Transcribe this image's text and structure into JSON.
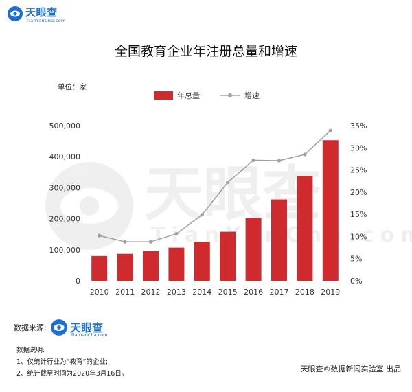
{
  "brand": {
    "name": "天眼查",
    "sub": "TianYanCha.com",
    "color": "#1d6fd1"
  },
  "chart_data": {
    "type": "bar",
    "title": "全国教育企业年注册总量和增速",
    "unit_label": "单位：家",
    "categories": [
      "2010",
      "2011",
      "2012",
      "2013",
      "2014",
      "2015",
      "2016",
      "2017",
      "2018",
      "2019"
    ],
    "series": [
      {
        "name": "年总量",
        "type": "bar",
        "axis": "left",
        "color": "#cf2b2f",
        "values": [
          80000,
          87000,
          96000,
          107000,
          125000,
          158000,
          203000,
          262000,
          338000,
          453000
        ]
      },
      {
        "name": "增速",
        "type": "line",
        "axis": "right",
        "color": "#a0a0a0",
        "values": [
          0.102,
          0.088,
          0.088,
          0.106,
          0.149,
          0.222,
          0.272,
          0.271,
          0.285,
          0.339
        ]
      }
    ],
    "left_axis": {
      "ylim": [
        0,
        500000
      ],
      "ticks": [
        "0",
        "100,000",
        "200,000",
        "300,000",
        "400,000",
        "500,000"
      ]
    },
    "right_axis": {
      "ylim": [
        0,
        0.35
      ],
      "ticks": [
        "0%",
        "5%",
        "10%",
        "15%",
        "20%",
        "25%",
        "30%",
        "35%"
      ]
    },
    "legend_position": "top",
    "grid": false
  },
  "footer": {
    "source_label": "数据来源:",
    "notes_title": "数据说明:",
    "notes": [
      "1、仅统计行业为“教育”的企业;",
      "2、统计截至时间为2020年3月16日。"
    ],
    "credit": "天眼查®数据新闻实验室 出品"
  }
}
